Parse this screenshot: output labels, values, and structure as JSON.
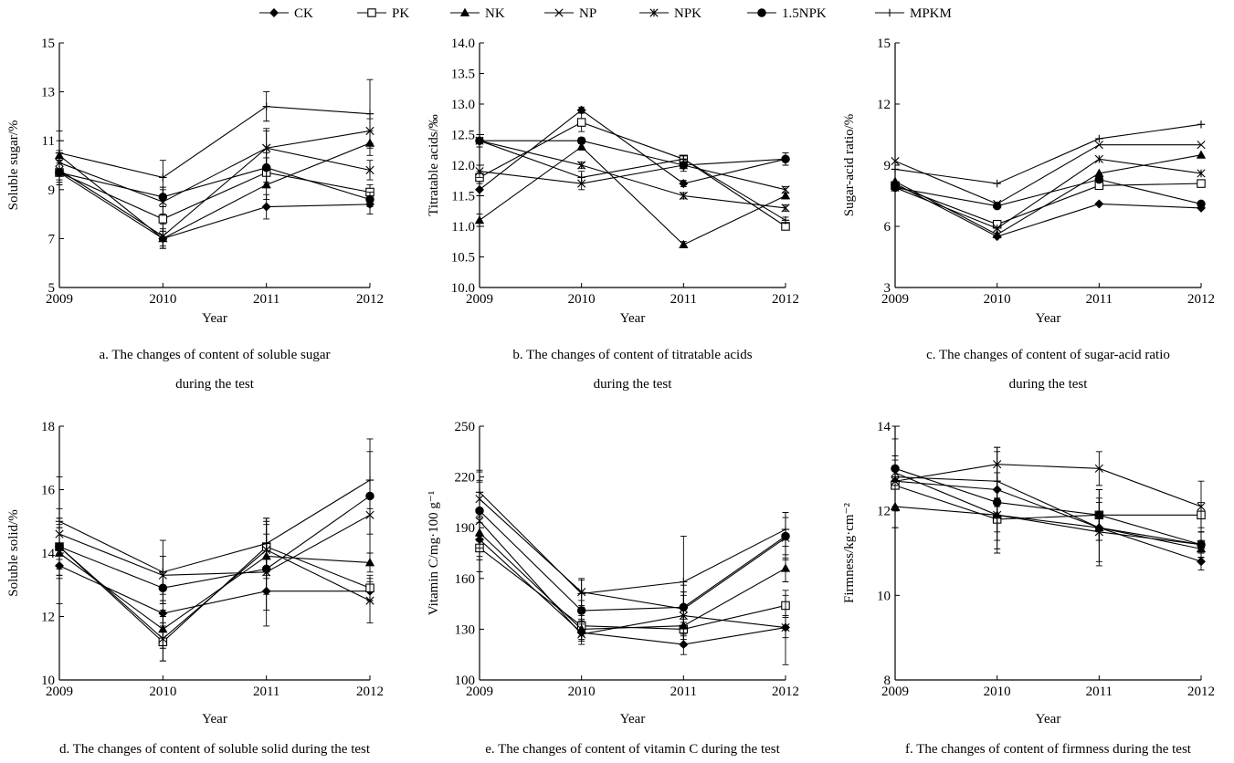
{
  "legend": [
    {
      "name": "CK",
      "marker": "diamond"
    },
    {
      "name": "PK",
      "marker": "square-open"
    },
    {
      "name": "NK",
      "marker": "triangle"
    },
    {
      "name": "NP",
      "marker": "x"
    },
    {
      "name": "NPK",
      "marker": "star"
    },
    {
      "name": "1.5NPK",
      "marker": "circle"
    },
    {
      "name": "MPKM",
      "marker": "plus"
    }
  ],
  "chart_data": [
    {
      "id": "a",
      "type": "line",
      "caption_lines": [
        "a. The changes of content of soluble sugar",
        "during the test"
      ],
      "xlabel": "Year",
      "ylabel": "Soluble sugar/%",
      "x": [
        "2009",
        "2010",
        "2011",
        "2012"
      ],
      "ylim": [
        5,
        15
      ],
      "yticks": [
        "5",
        "7",
        "9",
        "11",
        "13",
        "15"
      ],
      "series": [
        {
          "name": "CK",
          "values": [
            9.7,
            7.0,
            8.3,
            8.4
          ],
          "err": [
            0.5,
            0.3,
            0.5,
            0.4
          ]
        },
        {
          "name": "PK",
          "values": [
            9.7,
            7.8,
            9.7,
            8.9
          ],
          "err": [
            0.4,
            0.5,
            0.6,
            0.3
          ]
        },
        {
          "name": "NK",
          "values": [
            10.4,
            7.0,
            9.2,
            10.9
          ],
          "err": [
            0.6,
            0.4,
            0.6,
            0.5
          ]
        },
        {
          "name": "NP",
          "values": [
            10.1,
            8.5,
            10.7,
            11.4
          ],
          "err": [
            0.5,
            0.5,
            0.7,
            0.5
          ]
        },
        {
          "name": "NPK",
          "values": [
            9.8,
            7.1,
            10.7,
            9.8
          ],
          "err": [
            0.4,
            0.5,
            0.8,
            0.4
          ]
        },
        {
          "name": "1.5NPK",
          "values": [
            9.7,
            8.7,
            9.9,
            8.6
          ],
          "err": [
            0.5,
            0.4,
            0.6,
            0.3
          ]
        },
        {
          "name": "MPKM",
          "values": [
            10.5,
            9.5,
            12.4,
            12.1
          ],
          "err": [
            0.9,
            0.7,
            0.6,
            1.4
          ]
        }
      ]
    },
    {
      "id": "b",
      "type": "line",
      "caption_lines": [
        "b. The changes of content of titratable acids",
        "during the test"
      ],
      "xlabel": "Year",
      "ylabel": "Titratable acids/‰",
      "x": [
        "2009",
        "2010",
        "2011",
        "2012"
      ],
      "ylim": [
        10.0,
        14.0
      ],
      "yticks": [
        "10.0",
        "10.5",
        "11.0",
        "11.5",
        "12.0",
        "12.5",
        "13.0",
        "13.5",
        "14.0"
      ],
      "series": [
        {
          "name": "CK",
          "values": [
            11.6,
            12.9,
            11.7,
            12.1
          ],
          "err": [
            0.1,
            0.05,
            0.05,
            0.1
          ]
        },
        {
          "name": "PK",
          "values": [
            11.8,
            12.7,
            12.1,
            11.0
          ],
          "err": [
            0.1,
            0.15,
            0.05,
            0.05
          ]
        },
        {
          "name": "NK",
          "values": [
            11.1,
            12.3,
            10.7,
            11.5
          ],
          "err": [
            0.1,
            0.05,
            0.05,
            0.05
          ]
        },
        {
          "name": "NP",
          "values": [
            11.9,
            11.7,
            12.0,
            11.6
          ],
          "err": [
            0.1,
            0.1,
            0.05,
            0.05
          ]
        },
        {
          "name": "NPK",
          "values": [
            12.4,
            12.0,
            11.5,
            11.3
          ],
          "err": [
            0.1,
            0.05,
            0.05,
            0.05
          ]
        },
        {
          "name": "1.5NPK",
          "values": [
            12.4,
            12.4,
            12.0,
            12.1
          ],
          "err": [
            0.1,
            0.05,
            0.1,
            0.1
          ]
        },
        {
          "name": "MPKM",
          "values": [
            12.4,
            11.8,
            12.1,
            11.1
          ],
          "err": [
            0.1,
            0.1,
            0.05,
            0.05
          ]
        }
      ]
    },
    {
      "id": "c",
      "type": "line",
      "caption_lines": [
        "c. The changes of content of sugar-acid ratio",
        "during the test"
      ],
      "xlabel": "Year",
      "ylabel": "Sugar-acid ratio/%",
      "x": [
        "2009",
        "2010",
        "2011",
        "2012"
      ],
      "ylim": [
        3,
        15
      ],
      "yticks": [
        "3",
        "6",
        "9",
        "12",
        "15"
      ],
      "series": [
        {
          "name": "CK",
          "values": [
            8.1,
            5.5,
            7.1,
            6.9
          ],
          "err": [
            0,
            0,
            0,
            0
          ]
        },
        {
          "name": "PK",
          "values": [
            8.0,
            6.1,
            8.0,
            8.1
          ],
          "err": [
            0,
            0,
            0,
            0
          ]
        },
        {
          "name": "NK",
          "values": [
            8.2,
            5.6,
            8.6,
            9.5
          ],
          "err": [
            0,
            0,
            0,
            0
          ]
        },
        {
          "name": "NP",
          "values": [
            9.2,
            7.1,
            10.0,
            10.0
          ],
          "err": [
            0,
            0,
            0,
            0
          ]
        },
        {
          "name": "NPK",
          "values": [
            7.9,
            5.9,
            9.3,
            8.6
          ],
          "err": [
            0,
            0,
            0,
            0
          ]
        },
        {
          "name": "1.5NPK",
          "values": [
            7.9,
            7.0,
            8.3,
            7.1
          ],
          "err": [
            0,
            0,
            0,
            0
          ]
        },
        {
          "name": "MPKM",
          "values": [
            8.8,
            8.1,
            10.3,
            11.0
          ],
          "err": [
            0,
            0,
            0,
            0
          ]
        }
      ]
    },
    {
      "id": "d",
      "type": "line",
      "caption_lines": [
        "d. The changes of content of soluble solid during the test"
      ],
      "xlabel": "Year",
      "ylabel": "Soluble solid/%",
      "x": [
        "2009",
        "2010",
        "2011",
        "2012"
      ],
      "ylim": [
        10,
        18
      ],
      "yticks": [
        "10",
        "12",
        "14",
        "16",
        "18"
      ],
      "series": [
        {
          "name": "CK",
          "values": [
            13.6,
            12.1,
            12.8,
            12.8
          ],
          "err": [
            1.2,
            0.4,
            0.6,
            0.3
          ]
        },
        {
          "name": "PK",
          "values": [
            14.2,
            11.2,
            14.2,
            12.9
          ],
          "err": [
            0.9,
            0.6,
            0.8,
            0.4
          ]
        },
        {
          "name": "NK",
          "values": [
            14.0,
            11.6,
            13.9,
            13.7
          ],
          "err": [
            0.8,
            0.6,
            0.7,
            0.3
          ]
        },
        {
          "name": "NP",
          "values": [
            14.6,
            13.3,
            13.4,
            15.2
          ],
          "err": [
            0.8,
            0.6,
            1.7,
            0.6
          ]
        },
        {
          "name": "NPK",
          "values": [
            14.2,
            11.3,
            14.1,
            12.5
          ],
          "err": [
            0.7,
            0.7,
            0.8,
            0.7
          ]
        },
        {
          "name": "1.5NPK",
          "values": [
            14.2,
            12.9,
            13.5,
            15.8
          ],
          "err": [
            0.9,
            0.5,
            0.8,
            1.8
          ]
        },
        {
          "name": "MPKM",
          "values": [
            15.0,
            13.4,
            14.3,
            16.3
          ],
          "err": [
            1.4,
            1.0,
            0.8,
            0.9
          ]
        }
      ]
    },
    {
      "id": "e",
      "type": "line",
      "caption_lines": [
        "e. The changes of content of vitamin C during the test"
      ],
      "xlabel": "Year",
      "ylabel": "Vitamin C/mg·100 g⁻¹",
      "x": [
        "2009",
        "2010",
        "2011",
        "2012"
      ],
      "ylim": [
        100,
        250
      ],
      "yticks": [
        "100",
        "130",
        "160",
        "190",
        "220",
        "250"
      ],
      "series": [
        {
          "name": "CK",
          "values": [
            183,
            128,
            121,
            131
          ],
          "err": [
            10,
            5,
            6,
            6
          ]
        },
        {
          "name": "PK",
          "values": [
            178,
            132,
            130,
            144
          ],
          "err": [
            7,
            6,
            6,
            6
          ]
        },
        {
          "name": "NK",
          "values": [
            187,
            130,
            132,
            166
          ],
          "err": [
            9,
            6,
            6,
            8
          ]
        },
        {
          "name": "NP",
          "values": [
            207,
            152,
            142,
            184
          ],
          "err": [
            10,
            8,
            8,
            12
          ]
        },
        {
          "name": "NPK",
          "values": [
            194,
            127,
            138,
            131
          ],
          "err": [
            30,
            6,
            18,
            22
          ]
        },
        {
          "name": "1.5NPK",
          "values": [
            200,
            141,
            143,
            185
          ],
          "err": [
            18,
            6,
            9,
            14
          ]
        },
        {
          "name": "MPKM",
          "values": [
            211,
            151,
            158,
            189
          ],
          "err": [
            12,
            8,
            27,
            10
          ]
        }
      ]
    },
    {
      "id": "f",
      "type": "line",
      "caption_lines": [
        "f. The changes of content of firmness during the test"
      ],
      "xlabel": "Year",
      "ylabel": "Firmness/kg·cm⁻²",
      "x": [
        "2009",
        "2010",
        "2011",
        "2012"
      ],
      "ylim": [
        8,
        14
      ],
      "yticks": [
        "8",
        "10",
        "12",
        "14"
      ],
      "series": [
        {
          "name": "CK",
          "values": [
            12.7,
            12.5,
            11.6,
            10.8
          ],
          "err": [
            0.6,
            0.4,
            0.3,
            0.2
          ]
        },
        {
          "name": "PK",
          "values": [
            12.6,
            11.8,
            11.9,
            11.9
          ],
          "err": [
            0.6,
            0.5,
            0.4,
            0.3
          ]
        },
        {
          "name": "NK",
          "values": [
            12.1,
            11.9,
            11.6,
            11.1
          ],
          "err": [
            0.5,
            0.4,
            0.3,
            0.2
          ]
        },
        {
          "name": "NP",
          "values": [
            12.7,
            13.1,
            13.0,
            12.1
          ],
          "err": [
            0.6,
            0.4,
            0.4,
            0.6
          ]
        },
        {
          "name": "NPK",
          "values": [
            12.9,
            11.9,
            11.5,
            11.2
          ],
          "err": [
            0.8,
            0.8,
            0.7,
            0.3
          ]
        },
        {
          "name": "1.5NPK",
          "values": [
            13.0,
            12.2,
            11.9,
            11.2
          ],
          "err": [
            1.0,
            1.2,
            0.6,
            0.3
          ]
        },
        {
          "name": "MPKM",
          "values": [
            12.8,
            12.7,
            11.6,
            11.2
          ],
          "err": [
            1.2,
            0.8,
            0.9,
            0.3
          ]
        }
      ]
    }
  ]
}
